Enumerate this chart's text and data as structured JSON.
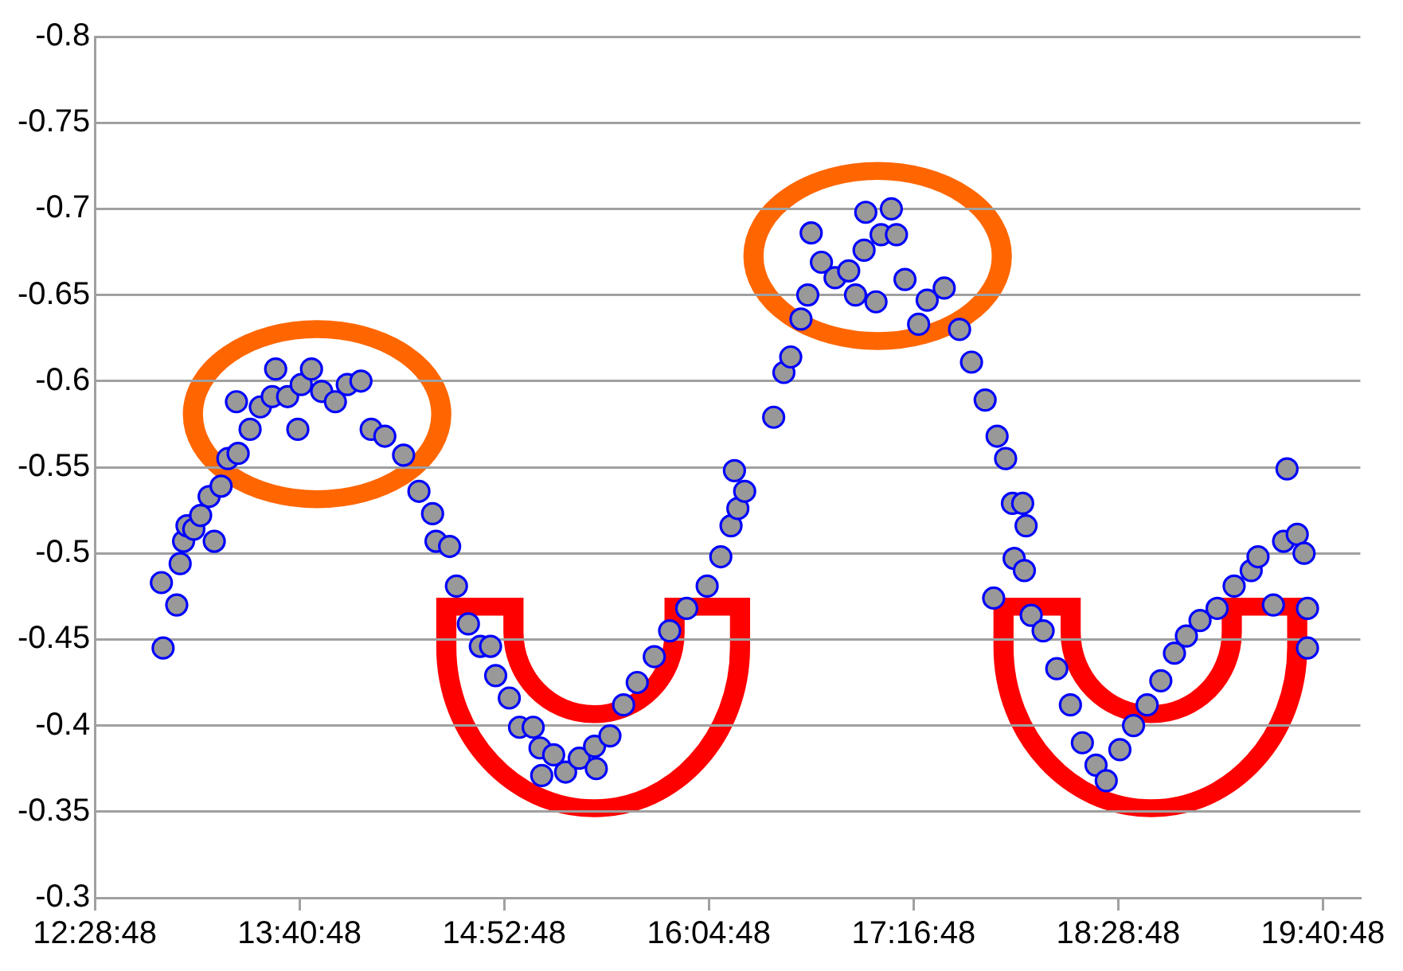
{
  "chart_data": {
    "type": "scatter",
    "x": [
      12.88,
      12.87,
      12.96,
      12.98,
      13.0,
      13.02,
      13.06,
      13.1,
      13.18,
      13.15,
      13.22,
      13.26,
      13.32,
      13.31,
      13.39,
      13.45,
      13.52,
      13.54,
      13.61,
      13.67,
      13.69,
      13.75,
      13.81,
      13.89,
      13.96,
      14.04,
      14.1,
      14.18,
      14.29,
      14.38,
      14.46,
      14.48,
      14.56,
      14.6,
      14.67,
      14.74,
      14.8,
      14.83,
      14.91,
      14.97,
      15.05,
      15.09,
      15.1,
      15.17,
      15.24,
      15.32,
      15.41,
      15.42,
      15.5,
      15.58,
      15.66,
      15.76,
      15.85,
      15.95,
      16.07,
      16.15,
      16.21,
      16.25,
      16.29,
      16.23,
      16.46,
      16.52,
      16.56,
      16.62,
      16.68,
      16.66,
      16.74,
      16.82,
      16.9,
      16.94,
      16.99,
      17.0,
      17.06,
      17.09,
      17.15,
      17.18,
      17.23,
      17.31,
      17.36,
      17.46,
      17.55,
      17.62,
      17.7,
      17.77,
      17.82,
      17.86,
      17.92,
      17.94,
      17.75,
      17.87,
      17.93,
      17.97,
      18.04,
      18.12,
      18.2,
      18.27,
      18.35,
      18.41,
      18.49,
      18.57,
      18.65,
      18.73,
      18.81,
      18.88,
      18.96,
      19.06,
      19.16,
      19.26,
      19.3,
      19.39,
      19.45,
      19.53,
      19.57,
      19.47,
      19.59,
      19.59
    ],
    "series": [
      {
        "color": "#999999",
        "values": [
          -0.445,
          -0.483,
          -0.47,
          -0.494,
          -0.507,
          -0.516,
          -0.514,
          -0.522,
          -0.507,
          -0.533,
          -0.539,
          -0.555,
          -0.558,
          -0.588,
          -0.572,
          -0.585,
          -0.591,
          -0.607,
          -0.591,
          -0.572,
          -0.598,
          -0.607,
          -0.594,
          -0.588,
          -0.598,
          -0.6,
          -0.572,
          -0.568,
          -0.557,
          -0.536,
          -0.523,
          -0.507,
          -0.504,
          -0.481,
          -0.459,
          -0.446,
          -0.446,
          -0.429,
          -0.416,
          -0.399,
          -0.399,
          -0.387,
          -0.371,
          -0.383,
          -0.373,
          -0.381,
          -0.388,
          -0.375,
          -0.394,
          -0.412,
          -0.425,
          -0.44,
          -0.455,
          -0.468,
          -0.481,
          -0.498,
          -0.516,
          -0.526,
          -0.536,
          -0.548,
          -0.579,
          -0.605,
          -0.614,
          -0.636,
          -0.686,
          -0.65,
          -0.669,
          -0.66,
          -0.664,
          -0.65,
          -0.676,
          -0.698,
          -0.646,
          -0.685,
          -0.7,
          -0.685,
          -0.659,
          -0.633,
          -0.647,
          -0.654,
          -0.63,
          -0.611,
          -0.589,
          -0.568,
          -0.555,
          -0.529,
          -0.529,
          -0.516,
          -0.474,
          -0.497,
          -0.49,
          -0.464,
          -0.455,
          -0.433,
          -0.412,
          -0.39,
          -0.377,
          -0.368,
          -0.386,
          -0.4,
          -0.412,
          -0.426,
          -0.442,
          -0.452,
          -0.461,
          -0.468,
          -0.481,
          -0.49,
          -0.498,
          -0.47,
          -0.507,
          -0.511,
          -0.5,
          -0.549,
          -0.468,
          -0.445
        ]
      }
    ],
    "xlim": [
      12.48,
      19.9
    ],
    "xticks": [
      {
        "value": 12.48,
        "label": "12:28:48"
      },
      {
        "value": 13.68,
        "label": "13:40:48"
      },
      {
        "value": 14.88,
        "label": "14:52:48"
      },
      {
        "value": 16.08,
        "label": "16:04:48"
      },
      {
        "value": 17.28,
        "label": "17:16:48"
      },
      {
        "value": 18.48,
        "label": "18:28:48"
      },
      {
        "value": 19.68,
        "label": "19:40:48"
      }
    ],
    "ylim": [
      -0.3,
      -0.8
    ],
    "yticks": [
      -0.3,
      -0.35,
      -0.4,
      -0.45,
      -0.5,
      -0.55,
      -0.6,
      -0.65,
      -0.7,
      -0.75,
      -0.8
    ],
    "grid": "y",
    "marker": "circle",
    "legend": false
  }
}
